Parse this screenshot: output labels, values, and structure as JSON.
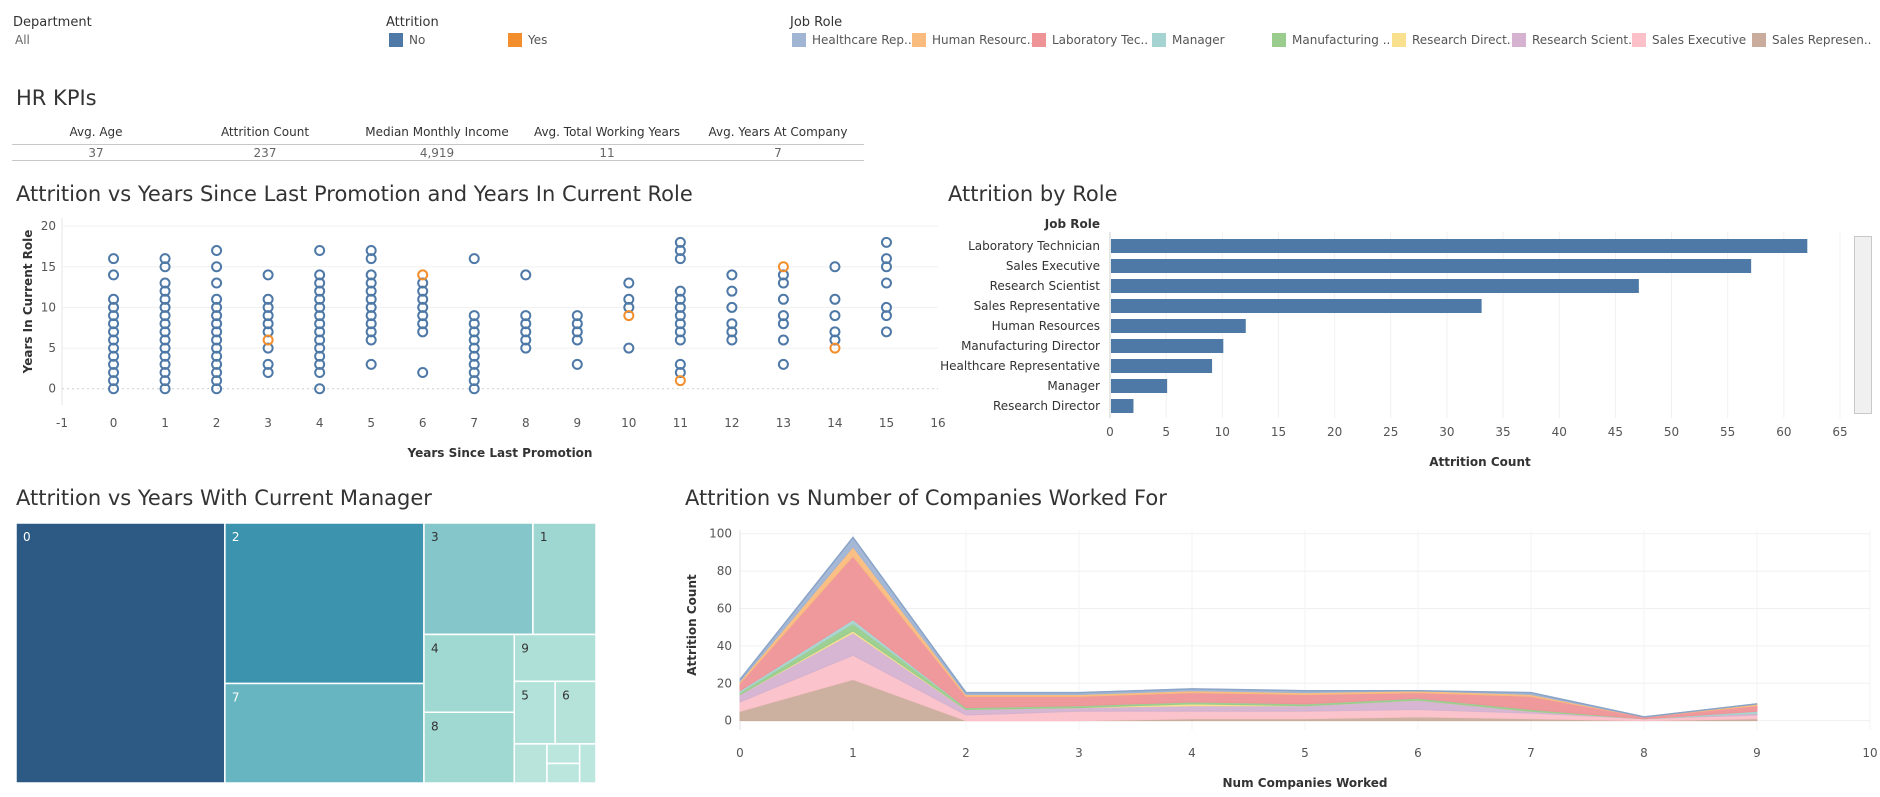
{
  "filters": {
    "department": {
      "label": "Department",
      "value": "All"
    },
    "attrition": {
      "label": "Attrition",
      "items": [
        {
          "label": "No",
          "color": "#4e79a7"
        },
        {
          "label": "Yes",
          "color": "#f28e2b"
        }
      ]
    },
    "job_role": {
      "label": "Job Role",
      "items": [
        {
          "label": "Healthcare Rep..",
          "color": "#a0b4d4"
        },
        {
          "label": "Human Resourc..",
          "color": "#f9bc7e"
        },
        {
          "label": "Laboratory Tec..",
          "color": "#ee9497"
        },
        {
          "label": "Manager",
          "color": "#a5d3d1"
        },
        {
          "label": "Manufacturing ..",
          "color": "#99cc8d"
        },
        {
          "label": "Research Direct..",
          "color": "#f8e08e"
        },
        {
          "label": "Research Scient..",
          "color": "#d4b2d0"
        },
        {
          "label": "Sales Executive",
          "color": "#fbc0c8"
        },
        {
          "label": "Sales Represen..",
          "color": "#c9ac9b"
        }
      ]
    }
  },
  "kpis": {
    "title": "HR KPIs",
    "items": [
      {
        "label": "Avg. Age",
        "value": "37"
      },
      {
        "label": "Attrition Count",
        "value": "237"
      },
      {
        "label": "Median Monthly Income",
        "value": "4,919"
      },
      {
        "label": "Avg. Total Working Years",
        "value": "11"
      },
      {
        "label": "Avg. Years At Company",
        "value": "7"
      }
    ]
  },
  "chart_data": [
    {
      "id": "scatter",
      "type": "scatter",
      "title": "Attrition vs Years Since Last Promotion and Years In Current Role",
      "xlabel": "Years Since Last Promotion",
      "ylabel": "Years In Current Role",
      "xlim": [
        -1,
        16
      ],
      "ylim": [
        -2,
        21
      ],
      "xticks": [
        -1,
        0,
        1,
        2,
        3,
        4,
        5,
        6,
        7,
        8,
        9,
        10,
        11,
        12,
        13,
        14,
        15,
        16
      ],
      "yticks": [
        0,
        5,
        10,
        15,
        20
      ],
      "series": [
        {
          "name": "No",
          "color": "#4e79a7",
          "points": [
            [
              0,
              0
            ],
            [
              0,
              1
            ],
            [
              0,
              2
            ],
            [
              0,
              3
            ],
            [
              0,
              4
            ],
            [
              0,
              5
            ],
            [
              0,
              6
            ],
            [
              0,
              7
            ],
            [
              0,
              8
            ],
            [
              0,
              9
            ],
            [
              0,
              10
            ],
            [
              0,
              11
            ],
            [
              0,
              14
            ],
            [
              0,
              16
            ],
            [
              1,
              0
            ],
            [
              1,
              1
            ],
            [
              1,
              2
            ],
            [
              1,
              3
            ],
            [
              1,
              4
            ],
            [
              1,
              5
            ],
            [
              1,
              6
            ],
            [
              1,
              7
            ],
            [
              1,
              8
            ],
            [
              1,
              9
            ],
            [
              1,
              10
            ],
            [
              1,
              11
            ],
            [
              1,
              12
            ],
            [
              1,
              13
            ],
            [
              1,
              15
            ],
            [
              1,
              16
            ],
            [
              2,
              0
            ],
            [
              2,
              1
            ],
            [
              2,
              2
            ],
            [
              2,
              3
            ],
            [
              2,
              4
            ],
            [
              2,
              5
            ],
            [
              2,
              6
            ],
            [
              2,
              7
            ],
            [
              2,
              8
            ],
            [
              2,
              9
            ],
            [
              2,
              10
            ],
            [
              2,
              11
            ],
            [
              2,
              13
            ],
            [
              2,
              15
            ],
            [
              2,
              17
            ],
            [
              3,
              2
            ],
            [
              3,
              3
            ],
            [
              3,
              5
            ],
            [
              3,
              7
            ],
            [
              3,
              8
            ],
            [
              3,
              9
            ],
            [
              3,
              10
            ],
            [
              3,
              11
            ],
            [
              3,
              14
            ],
            [
              4,
              0
            ],
            [
              4,
              2
            ],
            [
              4,
              3
            ],
            [
              4,
              4
            ],
            [
              4,
              5
            ],
            [
              4,
              6
            ],
            [
              4,
              7
            ],
            [
              4,
              8
            ],
            [
              4,
              9
            ],
            [
              4,
              10
            ],
            [
              4,
              11
            ],
            [
              4,
              12
            ],
            [
              4,
              13
            ],
            [
              4,
              14
            ],
            [
              4,
              17
            ],
            [
              5,
              3
            ],
            [
              5,
              6
            ],
            [
              5,
              7
            ],
            [
              5,
              8
            ],
            [
              5,
              9
            ],
            [
              5,
              10
            ],
            [
              5,
              11
            ],
            [
              5,
              12
            ],
            [
              5,
              13
            ],
            [
              5,
              14
            ],
            [
              5,
              16
            ],
            [
              5,
              17
            ],
            [
              6,
              2
            ],
            [
              6,
              7
            ],
            [
              6,
              8
            ],
            [
              6,
              9
            ],
            [
              6,
              10
            ],
            [
              6,
              11
            ],
            [
              6,
              12
            ],
            [
              6,
              13
            ],
            [
              7,
              0
            ],
            [
              7,
              1
            ],
            [
              7,
              2
            ],
            [
              7,
              3
            ],
            [
              7,
              4
            ],
            [
              7,
              5
            ],
            [
              7,
              6
            ],
            [
              7,
              7
            ],
            [
              7,
              8
            ],
            [
              7,
              9
            ],
            [
              7,
              16
            ],
            [
              8,
              5
            ],
            [
              8,
              6
            ],
            [
              8,
              7
            ],
            [
              8,
              8
            ],
            [
              8,
              9
            ],
            [
              8,
              14
            ],
            [
              9,
              3
            ],
            [
              9,
              6
            ],
            [
              9,
              7
            ],
            [
              9,
              8
            ],
            [
              9,
              9
            ],
            [
              10,
              5
            ],
            [
              10,
              10
            ],
            [
              10,
              11
            ],
            [
              10,
              13
            ],
            [
              11,
              2
            ],
            [
              11,
              3
            ],
            [
              11,
              6
            ],
            [
              11,
              7
            ],
            [
              11,
              8
            ],
            [
              11,
              9
            ],
            [
              11,
              10
            ],
            [
              11,
              11
            ],
            [
              11,
              12
            ],
            [
              11,
              16
            ],
            [
              11,
              17
            ],
            [
              11,
              18
            ],
            [
              12,
              6
            ],
            [
              12,
              7
            ],
            [
              12,
              8
            ],
            [
              12,
              10
            ],
            [
              12,
              12
            ],
            [
              12,
              14
            ],
            [
              13,
              3
            ],
            [
              13,
              6
            ],
            [
              13,
              8
            ],
            [
              13,
              9
            ],
            [
              13,
              11
            ],
            [
              13,
              13
            ],
            [
              13,
              14
            ],
            [
              14,
              6
            ],
            [
              14,
              7
            ],
            [
              14,
              9
            ],
            [
              14,
              11
            ],
            [
              14,
              15
            ],
            [
              15,
              7
            ],
            [
              15,
              9
            ],
            [
              15,
              10
            ],
            [
              15,
              13
            ],
            [
              15,
              15
            ],
            [
              15,
              16
            ],
            [
              15,
              18
            ]
          ]
        },
        {
          "name": "Yes",
          "color": "#f28e2b",
          "points": [
            [
              3,
              6
            ],
            [
              6,
              14
            ],
            [
              10,
              9
            ],
            [
              11,
              1
            ],
            [
              13,
              15
            ],
            [
              14,
              5
            ]
          ]
        }
      ]
    },
    {
      "id": "bar",
      "type": "bar",
      "orientation": "horizontal",
      "title": "Attrition by Role",
      "category_header": "Job Role",
      "xlabel": "Attrition Count",
      "xlim": [
        0,
        65
      ],
      "xticks": [
        0,
        5,
        10,
        15,
        20,
        25,
        30,
        35,
        40,
        45,
        50,
        55,
        60,
        65
      ],
      "color": "#4e79a7",
      "categories": [
        "Laboratory Technician",
        "Sales Executive",
        "Research Scientist",
        "Sales Representative",
        "Human Resources",
        "Manufacturing Director",
        "Healthcare Representative",
        "Manager",
        "Research Director"
      ],
      "values": [
        62,
        57,
        47,
        33,
        12,
        10,
        9,
        5,
        2
      ]
    },
    {
      "id": "treemap",
      "type": "treemap",
      "title": "Attrition vs Years With Current Manager",
      "items": [
        {
          "label": "0",
          "value": 85,
          "color": "#2d5a84"
        },
        {
          "label": "2",
          "value": 50,
          "color": "#3b93ad"
        },
        {
          "label": "7",
          "value": 31,
          "color": "#66b5c0"
        },
        {
          "label": "3",
          "value": 19,
          "color": "#85c6cb"
        },
        {
          "label": "1",
          "value": 11,
          "color": "#9ed6d1"
        },
        {
          "label": "4",
          "value": 11,
          "color": "#a0d8d2"
        },
        {
          "label": "8",
          "value": 10,
          "color": "#a0d8d2"
        },
        {
          "label": "9",
          "value": 6,
          "color": "#aee0d7"
        },
        {
          "label": "5",
          "value": 4,
          "color": "#b2e2d9"
        },
        {
          "label": "6",
          "value": 4,
          "color": "#b5e3da"
        },
        {
          "label": "",
          "value": 2,
          "color": "#b8e4dc"
        },
        {
          "label": "",
          "value": 1,
          "color": "#bbe6de"
        },
        {
          "label": "",
          "value": 1,
          "color": "#bbe6de"
        },
        {
          "label": "",
          "value": 1,
          "color": "#bbe6de"
        }
      ]
    },
    {
      "id": "area",
      "type": "area",
      "stacked": true,
      "title": "Attrition vs Number of Companies Worked For",
      "xlabel": "Num Companies Worked",
      "ylabel": "Attrition Count",
      "xlim": [
        0,
        10
      ],
      "ylim": [
        -5,
        102
      ],
      "xticks": [
        0,
        1,
        2,
        3,
        4,
        5,
        6,
        7,
        8,
        9,
        10
      ],
      "yticks": [
        0,
        20,
        40,
        60,
        80,
        100
      ],
      "x": [
        0,
        1,
        2,
        3,
        4,
        5,
        6,
        7,
        8,
        9
      ],
      "series": [
        {
          "name": "Sales Represen..",
          "color": "#c9ac9b",
          "values": [
            5,
            22,
            0,
            0,
            1,
            1,
            2,
            1,
            0,
            1
          ]
        },
        {
          "name": "Sales Executive",
          "color": "#fbc0c8",
          "values": [
            5,
            13,
            3,
            5,
            4,
            4,
            4,
            3,
            1,
            2
          ]
        },
        {
          "name": "Research Scient..",
          "color": "#d4b2d0",
          "values": [
            4,
            12,
            3,
            2,
            3,
            3,
            5,
            1,
            0,
            1
          ]
        },
        {
          "name": "Research Direct..",
          "color": "#f8e08e",
          "values": [
            0,
            1,
            0,
            0,
            1,
            0,
            0,
            0,
            0,
            0
          ]
        },
        {
          "name": "Manufacturing ..",
          "color": "#99cc8d",
          "values": [
            1,
            4,
            1,
            1,
            1,
            1,
            1,
            1,
            0,
            0
          ]
        },
        {
          "name": "Manager",
          "color": "#a5d3d1",
          "values": [
            1,
            2,
            0,
            0,
            0,
            0,
            0,
            0,
            0,
            1
          ]
        },
        {
          "name": "Laboratory Tec..",
          "color": "#ee9497",
          "values": [
            4,
            34,
            6,
            5,
            5,
            5,
            3,
            7,
            1,
            3
          ]
        },
        {
          "name": "Human Resourc..",
          "color": "#f9bc7e",
          "values": [
            1,
            5,
            1,
            1,
            1,
            1,
            1,
            1,
            0,
            1
          ]
        },
        {
          "name": "Healthcare Rep..",
          "color": "#a0b4d4",
          "values": [
            1,
            5,
            1,
            1,
            1,
            1,
            0,
            1,
            0,
            0
          ]
        }
      ]
    }
  ]
}
